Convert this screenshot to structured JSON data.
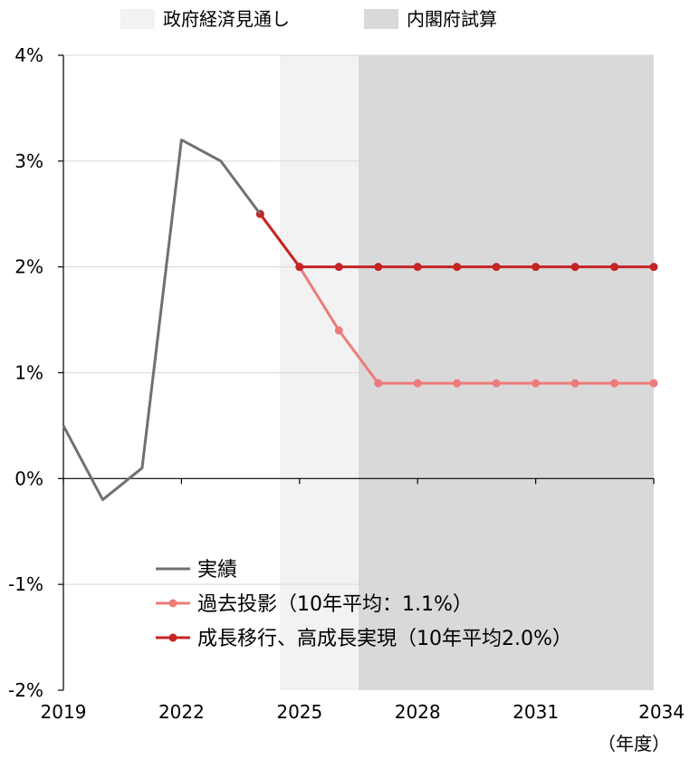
{
  "chart_data": {
    "type": "line",
    "title": "",
    "xlabel": "（年度）",
    "ylabel": "",
    "xlim": [
      2019,
      2034
    ],
    "ylim": [
      -2,
      4
    ],
    "x_ticks": [
      "2019",
      "2022",
      "2025",
      "2028",
      "2031",
      "2034"
    ],
    "y_ticks": [
      "4%",
      "3%",
      "2%",
      "1%",
      "0%",
      "-1%",
      "-2%"
    ],
    "negative_tick_color": "#e8121d",
    "shaded_regions": [
      {
        "label": "政府経済見通し",
        "from": 2024.5,
        "to": 2026.5,
        "color": "#f2f2f2"
      },
      {
        "label": "内閣府試算",
        "from": 2026.5,
        "to": 2034,
        "color": "#d9d9d9"
      }
    ],
    "series": [
      {
        "name": "実績",
        "color": "#707070",
        "markers": false,
        "x": [
          2019,
          2020,
          2021,
          2022,
          2023,
          2024
        ],
        "values": [
          0.5,
          -0.2,
          0.1,
          3.2,
          3.0,
          2.5
        ]
      },
      {
        "name": "過去投影（10年平均：1.1%）",
        "color": "#ed7b7b",
        "markers": true,
        "x": [
          2024,
          2025,
          2026,
          2027,
          2028,
          2029,
          2030,
          2031,
          2032,
          2033,
          2034
        ],
        "values": [
          2.5,
          2.0,
          1.4,
          0.9,
          0.9,
          0.9,
          0.9,
          0.9,
          0.9,
          0.9,
          0.9
        ]
      },
      {
        "name": "成長移行、高成長実現（10年平均2.0%）",
        "color": "#c42424",
        "markers": true,
        "x": [
          2024,
          2025,
          2026,
          2027,
          2028,
          2029,
          2030,
          2031,
          2032,
          2033,
          2034
        ],
        "values": [
          2.5,
          2.0,
          2.0,
          2.0,
          2.0,
          2.0,
          2.0,
          2.0,
          2.0,
          2.0,
          2.0
        ]
      }
    ],
    "legend_placement": "bottom-center",
    "grid": true
  }
}
